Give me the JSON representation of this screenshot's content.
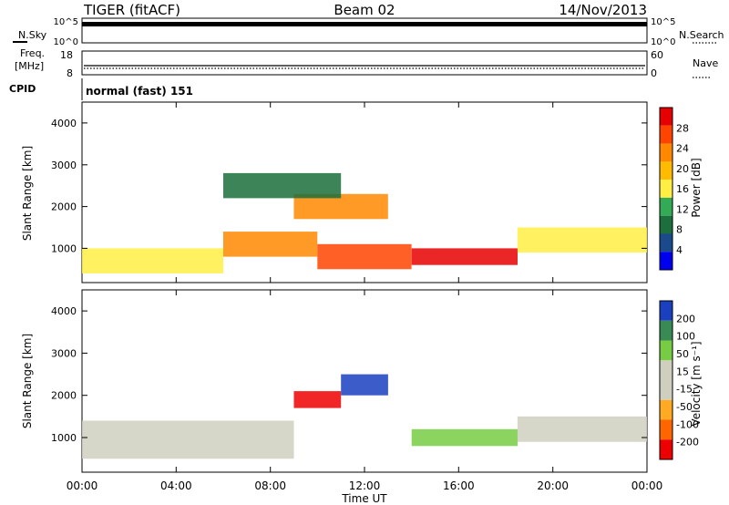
{
  "header": {
    "title": "TIGER (fitACF)",
    "beam": "Beam 02",
    "date": "14/Nov/2013"
  },
  "top_panels": {
    "nsky_label": "N.Sky",
    "nsky_ticks": [
      "10^5",
      "10^0"
    ],
    "nsearch_label": "N.Search",
    "nsearch_ticks": [
      "10^5",
      "10^0"
    ],
    "freq_label_1": "Freq.",
    "freq_label_2": "[MHz]",
    "freq_ticks": [
      "18",
      "8"
    ],
    "nave_label": "Nave",
    "nave_ticks": [
      "60",
      "0"
    ],
    "cpid_label": "CPID",
    "cpid_value": "normal (fast) 151"
  },
  "chart_data": [
    {
      "type": "heatmap",
      "name": "power",
      "ylabel": "Slant Range [km]",
      "yticks": [
        "4000",
        "3000",
        "2000",
        "1000"
      ],
      "ylim": [
        180,
        4500
      ],
      "xlim": [
        0,
        24
      ],
      "colorbar_label": "Power [dB]",
      "colorbar_ticks": [
        "28",
        "24",
        "20",
        "16",
        "12",
        "8",
        "4"
      ],
      "colorbar_colors": [
        "#e60000",
        "#ff4400",
        "#ff8800",
        "#ffbb00",
        "#ffee44",
        "#33aa55",
        "#1c6e3c",
        "#1a4a8c",
        "#0000ee"
      ],
      "band_segments": [
        {
          "range": [
            400,
            1000
          ],
          "x": [
            0,
            6
          ],
          "level": 4
        },
        {
          "range": [
            800,
            1400
          ],
          "x": [
            6,
            10
          ],
          "level": 6
        },
        {
          "range": [
            500,
            1100
          ],
          "x": [
            10,
            14
          ],
          "level": 7
        },
        {
          "range": [
            600,
            1000
          ],
          "x": [
            14,
            18.5
          ],
          "level": 8
        },
        {
          "range": [
            900,
            1500
          ],
          "x": [
            18.5,
            24
          ],
          "level": 4
        },
        {
          "range": [
            1700,
            2300
          ],
          "x": [
            9,
            13
          ],
          "level": 6
        },
        {
          "range": [
            2200,
            2800
          ],
          "x": [
            6,
            11
          ],
          "level": 2
        }
      ]
    },
    {
      "type": "heatmap",
      "name": "velocity",
      "ylabel": "Slant Range [km]",
      "yticks": [
        "4000",
        "3000",
        "2000",
        "1000"
      ],
      "ylim": [
        180,
        4500
      ],
      "xlim": [
        0,
        24
      ],
      "xlabel": "Time UT",
      "xticks": [
        "00:00",
        "04:00",
        "08:00",
        "12:00",
        "16:00",
        "20:00",
        "00:00"
      ],
      "colorbar_label": "Velocity [m s⁻¹]",
      "colorbar_ticks": [
        "200",
        "100",
        "50",
        "15",
        "-15",
        "-50",
        "-100",
        "-200"
      ],
      "colorbar_colors": [
        "#1a3fbf",
        "#3a8a55",
        "#77cc44",
        "#cfcfbf",
        "#cfcfbf",
        "#ffaa22",
        "#ff6600",
        "#ee0000"
      ],
      "band_segments": [
        {
          "range": [
            500,
            1400
          ],
          "x": [
            0,
            9
          ],
          "level": "gray"
        },
        {
          "range": [
            800,
            1200
          ],
          "x": [
            14,
            18.5
          ],
          "level": "green"
        },
        {
          "range": [
            1700,
            2100
          ],
          "x": [
            9,
            11
          ],
          "level": "red"
        },
        {
          "range": [
            2000,
            2500
          ],
          "x": [
            11,
            13
          ],
          "level": "blue"
        },
        {
          "range": [
            900,
            1500
          ],
          "x": [
            18.5,
            24
          ],
          "level": "gray"
        }
      ]
    }
  ]
}
